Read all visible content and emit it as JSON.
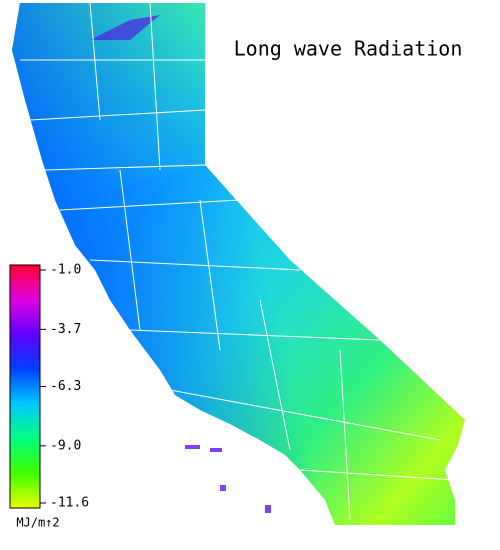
{
  "title": "Long wave Radiation",
  "colorbar": {
    "lim": [
      -11.6,
      -1.0
    ],
    "ticks": [
      {
        "value": -1.0,
        "label": "-1.0"
      },
      {
        "value": -3.7,
        "label": "-3.7"
      },
      {
        "value": -6.3,
        "label": "-6.3"
      },
      {
        "value": -9.0,
        "label": "-9.0"
      },
      {
        "value": -11.6,
        "label": "-11.6"
      }
    ],
    "colors": [
      "#ff0030",
      "#e000e0",
      "#6000ff",
      "#0040ff",
      "#00c8ff",
      "#00ff80",
      "#40ff00",
      "#e8ff00"
    ],
    "unit": "MJ/m↑2"
  }
}
